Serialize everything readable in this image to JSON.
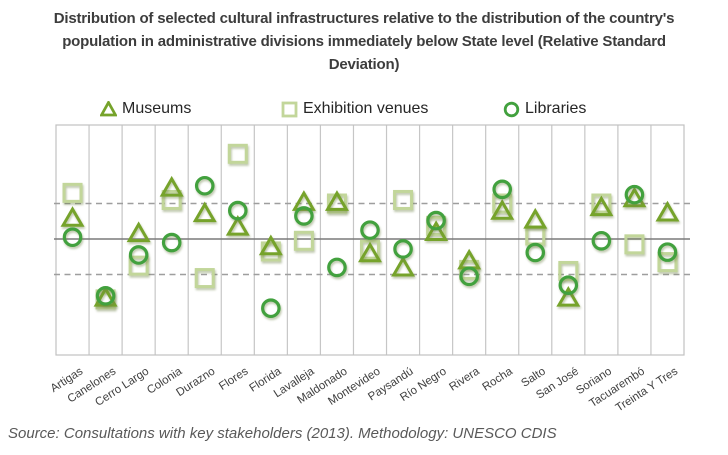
{
  "title": "Distribution of selected cultural infrastructures relative to the distribution of the country's population in administrative divisions immediately below State level (Relative Standard Deviation)",
  "legend": [
    {
      "label": "Museums",
      "marker": "triangle",
      "color": "#76a32b"
    },
    {
      "label": "Exhibition venues",
      "marker": "square",
      "color": "#c2d69a"
    },
    {
      "label": "Libraries",
      "marker": "circle",
      "color": "#42a13e"
    }
  ],
  "source": "Source: Consultations with key stakeholders (2013). Methodology: UNESCO CDIS",
  "chart_data": {
    "type": "scatter",
    "title": "Distribution of selected cultural infrastructures relative to the distribution of the country's population in administrative divisions immediately below State level (Relative Standard Deviation)",
    "xlabel": "",
    "ylabel": "",
    "categories": [
      "Artigas",
      "Canelones",
      "Cerro Largo",
      "Colonia",
      "Durazno",
      "Flores",
      "Florida",
      "Lavalleja",
      "Maldonado",
      "Montevideo",
      "Paysandú",
      "Río Negro",
      "Rivera",
      "Rocha",
      "Salto",
      "San José",
      "Soriano",
      "Tacuarembó",
      "Treinta Y Tres"
    ],
    "series": [
      {
        "name": "Museums",
        "marker": "triangle",
        "color": "#76a32b",
        "values": [
          0.6,
          -1.65,
          0.17,
          1.45,
          0.73,
          0.35,
          -0.2,
          1.05,
          1.05,
          -0.4,
          -0.8,
          0.2,
          -0.6,
          0.8,
          0.55,
          -1.65,
          0.9,
          1.15,
          0.75
        ]
      },
      {
        "name": "Exhibition venues",
        "marker": "square",
        "color": "#c2d69a",
        "values": [
          1.3,
          -1.7,
          -0.75,
          1.1,
          -1.1,
          2.4,
          -0.35,
          -0.05,
          1.0,
          -0.3,
          1.1,
          0.37,
          -0.87,
          1.0,
          0.1,
          -0.9,
          1.0,
          -0.15,
          -0.65
        ]
      },
      {
        "name": "Libraries",
        "marker": "circle",
        "color": "#42a13e",
        "values": [
          0.05,
          -1.6,
          -0.45,
          -0.1,
          1.5,
          0.8,
          -1.95,
          0.65,
          -0.8,
          0.25,
          -0.28,
          0.52,
          -1.05,
          1.4,
          -0.38,
          -1.3,
          -0.05,
          1.25,
          -0.37
        ]
      }
    ],
    "ylim": [
      -3.2,
      3.2
    ],
    "y_axis_labels_visible": false,
    "grid": "vertical-only",
    "reference_lines": {
      "mean": 0.0,
      "upper_dashed": 1.0,
      "lower_dashed": -1.0
    },
    "legend_position": "top"
  }
}
